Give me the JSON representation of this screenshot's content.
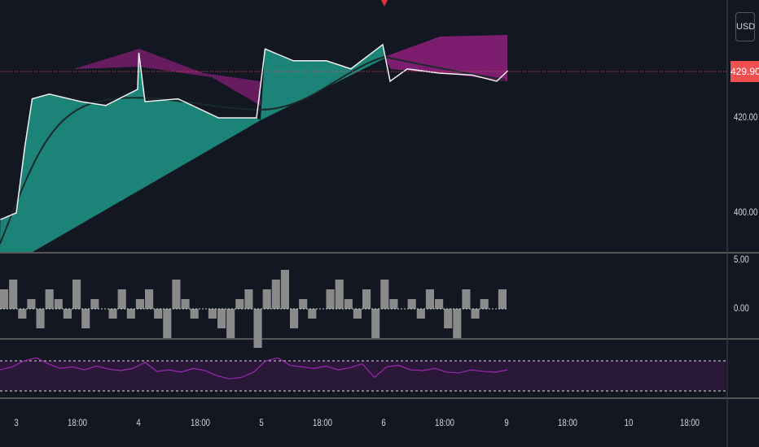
{
  "currency": "USD",
  "last_price": "429.90",
  "price_axis": [
    "420.00",
    "400.00"
  ],
  "osc_axis": [
    "5.00",
    "0.00"
  ],
  "time_axis": [
    "3",
    "18:00",
    "4",
    "18:00",
    "5",
    "18:00",
    "6",
    "18:00",
    "9",
    "18:00",
    "10",
    "18:00"
  ],
  "colors": {
    "up": "#26d6a0",
    "down": "#e0406a",
    "ribbon_up": "#1fa894",
    "ribbon_down": "#a0208a",
    "last": "#f0504f",
    "rsi": "#9c27b0",
    "hist": "#8a8a8a"
  },
  "chart_data": {
    "type": "line",
    "title": "",
    "xlabel": "",
    "ylabel": "USD",
    "ylim": [
      396,
      438
    ],
    "price": [
      [
        -0.13,
        398.6
      ],
      [
        0,
        400
      ],
      [
        0.07,
        414
      ],
      [
        0.13,
        424
      ],
      [
        0.27,
        425
      ],
      [
        0.53,
        423.4
      ],
      [
        0.73,
        422.6
      ],
      [
        0.99,
        426
      ],
      [
        1.0,
        433.7
      ],
      [
        1.05,
        423.4
      ],
      [
        1.32,
        424
      ],
      [
        1.65,
        420
      ],
      [
        1.96,
        420
      ],
      [
        2.03,
        434.5
      ],
      [
        2.26,
        432
      ],
      [
        2.53,
        432
      ],
      [
        2.73,
        430.3
      ],
      [
        2.99,
        435.4
      ],
      [
        3.05,
        427.7
      ],
      [
        3.19,
        430.3
      ],
      [
        3.45,
        429.4
      ],
      [
        3.72,
        429
      ],
      [
        3.92,
        427.7
      ],
      [
        4.01,
        429.9
      ]
    ],
    "histogram": [
      2,
      3,
      -1,
      1,
      -2,
      2,
      1,
      -1,
      3,
      -2,
      1,
      0,
      -1,
      2,
      -1,
      1,
      2,
      -1,
      -3,
      3,
      1,
      -1,
      0,
      -1,
      -2,
      -3,
      1,
      2,
      -4,
      2,
      3,
      4,
      -2,
      1,
      -1,
      0,
      2,
      3,
      1,
      -1,
      2,
      -3,
      3,
      1,
      0,
      1,
      -1,
      2,
      1,
      -2,
      -3,
      2,
      -1,
      1,
      0,
      2
    ],
    "rsi": [
      58,
      62,
      70,
      74,
      66,
      60,
      62,
      58,
      63,
      59,
      57,
      60,
      68,
      56,
      58,
      55,
      60,
      57,
      50,
      46,
      48,
      55,
      70,
      74,
      64,
      62,
      60,
      63,
      58,
      61,
      66,
      48,
      62,
      64,
      58,
      57,
      60,
      55,
      54,
      58,
      56,
      55,
      58
    ],
    "rsi_levels": [
      70,
      30
    ]
  }
}
